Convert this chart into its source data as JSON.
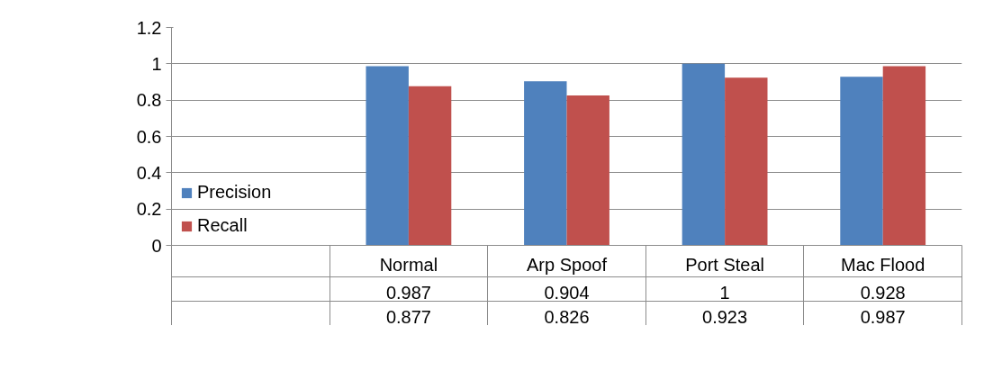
{
  "chart_data": {
    "type": "bar",
    "categories": [
      "Normal",
      "Arp Spoof",
      "Port Steal",
      "Mac Flood"
    ],
    "series": [
      {
        "name": "Precision",
        "color": "#4f81bd",
        "values": [
          0.987,
          0.904,
          1,
          0.928
        ]
      },
      {
        "name": "Recall",
        "color": "#c0504d",
        "values": [
          0.877,
          0.826,
          0.923,
          0.987
        ]
      }
    ],
    "ylim": [
      0,
      1.2
    ],
    "yticks": [
      0,
      0.2,
      0.4,
      0.6,
      0.8,
      1,
      1.2
    ],
    "grid": "y",
    "legend": "bottom left",
    "data_labels": true
  }
}
